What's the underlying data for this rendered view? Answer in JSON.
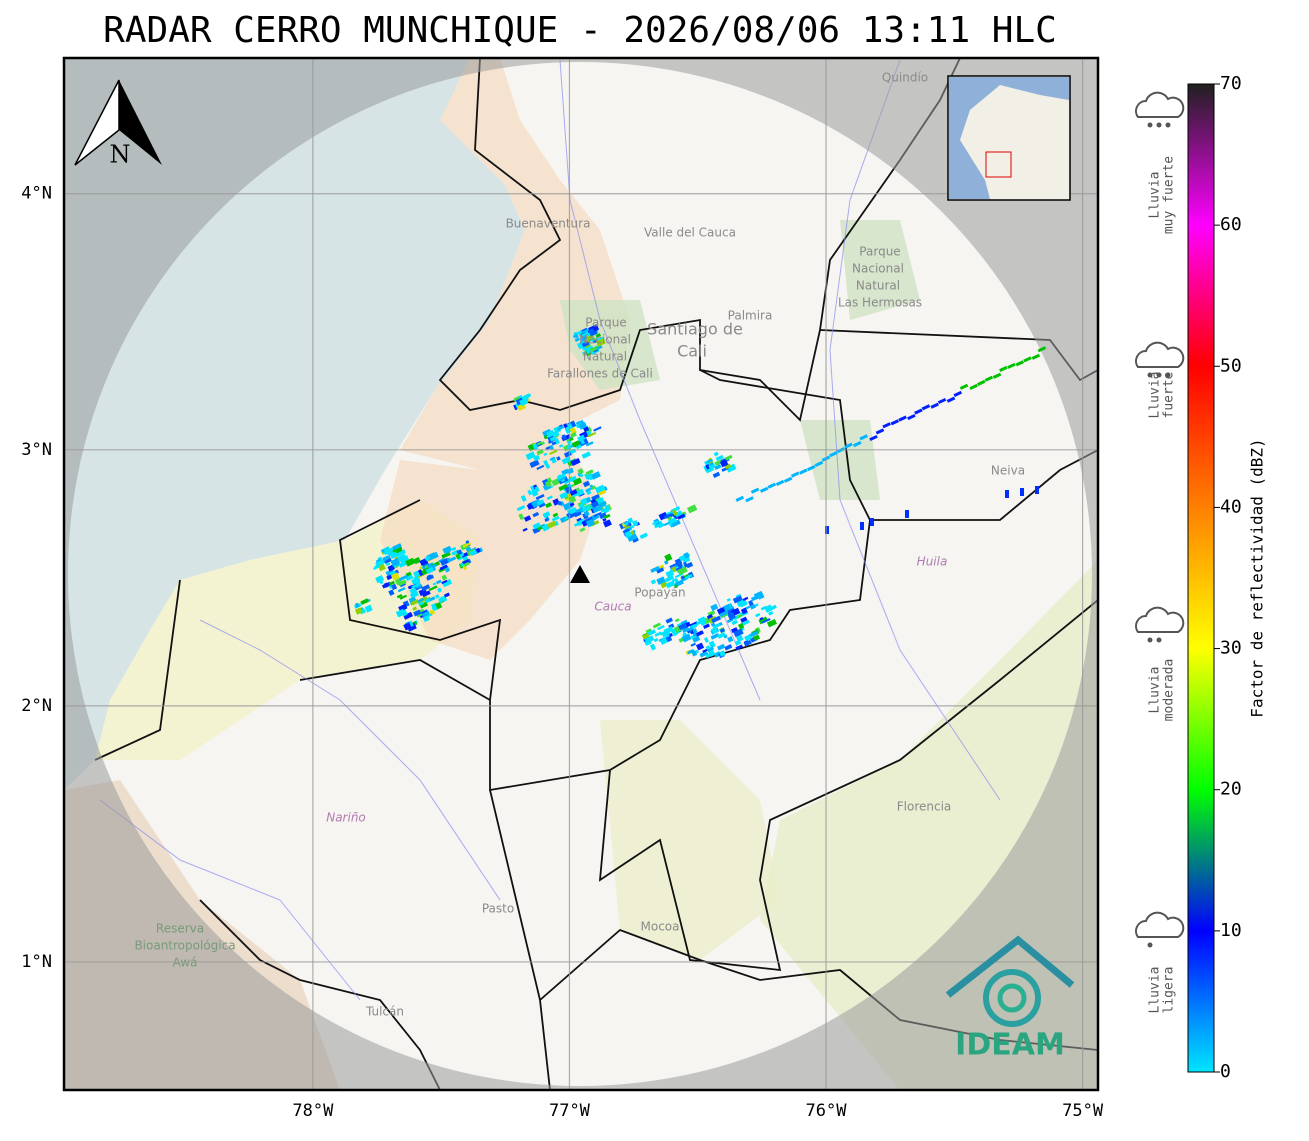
{
  "title": "RADAR CERRO MUNCHIQUE - 2026/08/06 13:11 HLC",
  "map": {
    "lon_range": [
      -78.97,
      -74.94
    ],
    "lat_range": [
      0.5,
      4.53
    ],
    "lon_ticks": [
      {
        "value": -78,
        "label": "78°W"
      },
      {
        "value": -77,
        "label": "77°W"
      },
      {
        "value": -76,
        "label": "76°W"
      },
      {
        "value": -75,
        "label": "75°W"
      }
    ],
    "lat_ticks": [
      {
        "value": 1,
        "label": "1°N"
      },
      {
        "value": 2,
        "label": "2°N"
      },
      {
        "value": 3,
        "label": "3°N"
      },
      {
        "value": 4,
        "label": "4°N"
      }
    ],
    "north_label": "N",
    "places": [
      "Buenaventura",
      "Valle del Cauca",
      "Santiago de",
      "Cali",
      "Palmira",
      "Parque",
      "Nacional",
      "Natural",
      "Las Hermosas",
      "Parque",
      "Nacional",
      "Natural",
      "Farallones de Cali",
      "Cauca",
      "Popayán",
      "Huila",
      "Neiva",
      "Nariño",
      "Pasto",
      "Mocoa",
      "Florencia",
      "Tulcán",
      "Reserva",
      "Bioantropológica",
      "Awá",
      "Quindío"
    ]
  },
  "colorbar": {
    "label": "Factor de reflectividad (dBZ)",
    "range": [
      0,
      70
    ],
    "ticks": [
      0,
      10,
      20,
      30,
      40,
      50,
      60,
      70
    ],
    "colors": [
      "#00e5ff",
      "#0000ff",
      "#00ff00",
      "#ffff00",
      "#ff8000",
      "#ff0000",
      "#ff00ff",
      "#202020"
    ]
  },
  "rain_categories": [
    [
      "Lluvia",
      "muy fuerte"
    ],
    [
      "Lluvia",
      "fuerte"
    ],
    [
      "Lluvia",
      "moderada"
    ],
    [
      "Lluvia",
      "ligera"
    ]
  ],
  "logo": "IDEAM"
}
